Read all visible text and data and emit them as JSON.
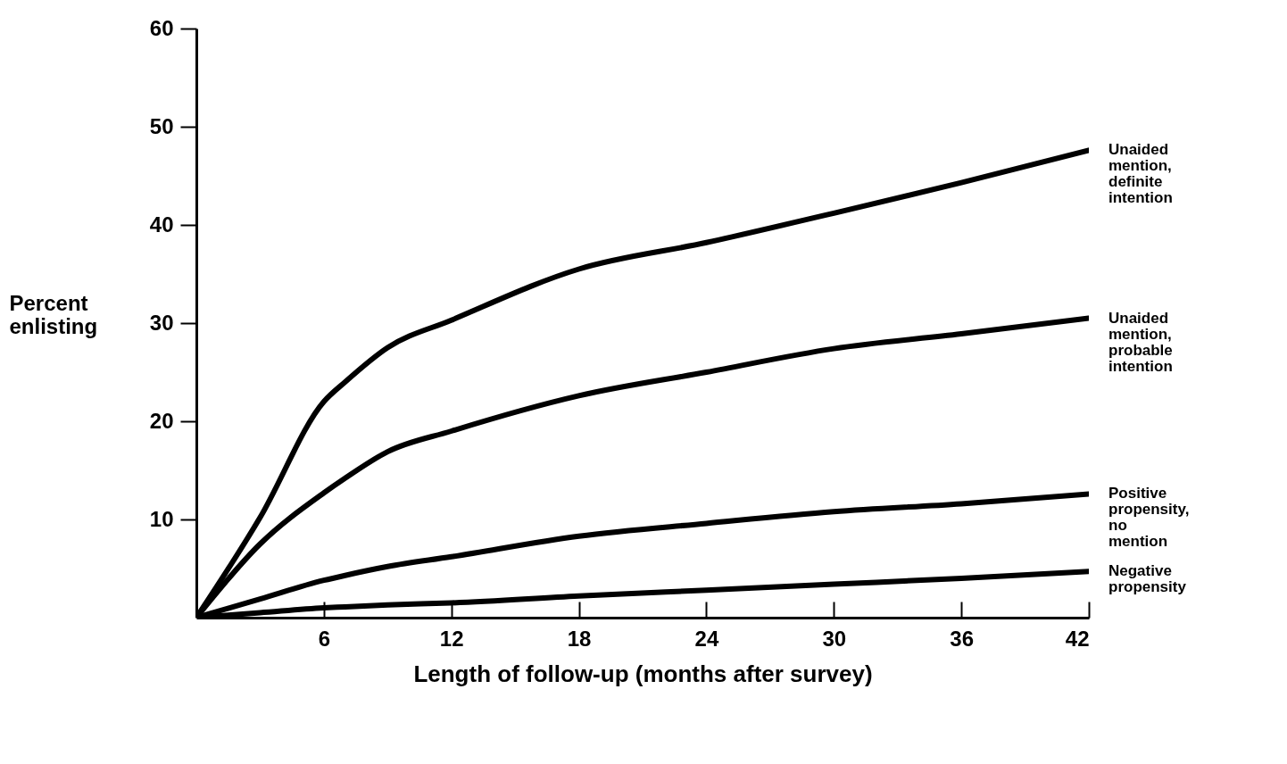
{
  "chart_data": {
    "type": "line",
    "xlabel": "Length of follow-up (months after survey)",
    "ylabel": "Percent enlisting",
    "x": [
      0,
      3,
      6,
      7,
      9,
      12,
      18,
      24,
      30,
      36,
      42
    ],
    "series": [
      {
        "name": "Unaided mention, definite intention",
        "color": "#000000",
        "values": [
          0,
          10.2,
          22,
          24,
          27.5,
          30.3,
          35.5,
          38.2,
          41.2,
          44.3,
          47.6
        ]
      },
      {
        "name": "Unaided mention, probable intention",
        "color": "#000000",
        "values": [
          0,
          7.5,
          12.7,
          14.2,
          16.9,
          19,
          22.6,
          25,
          27.4,
          28.9,
          30.5
        ]
      },
      {
        "name": "Positive propensity, no mention",
        "color": "#000000",
        "values": [
          0,
          1.9,
          3.8,
          4.3,
          5.2,
          6.2,
          8.3,
          9.6,
          10.8,
          11.6,
          12.6
        ]
      },
      {
        "name": "Negative propensity",
        "color": "#000000",
        "values": [
          0,
          0.5,
          1,
          1.1,
          1.3,
          1.5,
          2.2,
          2.8,
          3.4,
          4,
          4.7
        ]
      }
    ],
    "xlim": [
      0,
      42
    ],
    "ylim": [
      0,
      60
    ],
    "xticks": [
      6,
      12,
      18,
      24,
      30,
      36,
      42
    ],
    "yticks": [
      10,
      20,
      30,
      40,
      50,
      60
    ],
    "grid": false,
    "legend": false,
    "marker": "none",
    "line_style": "solid"
  }
}
